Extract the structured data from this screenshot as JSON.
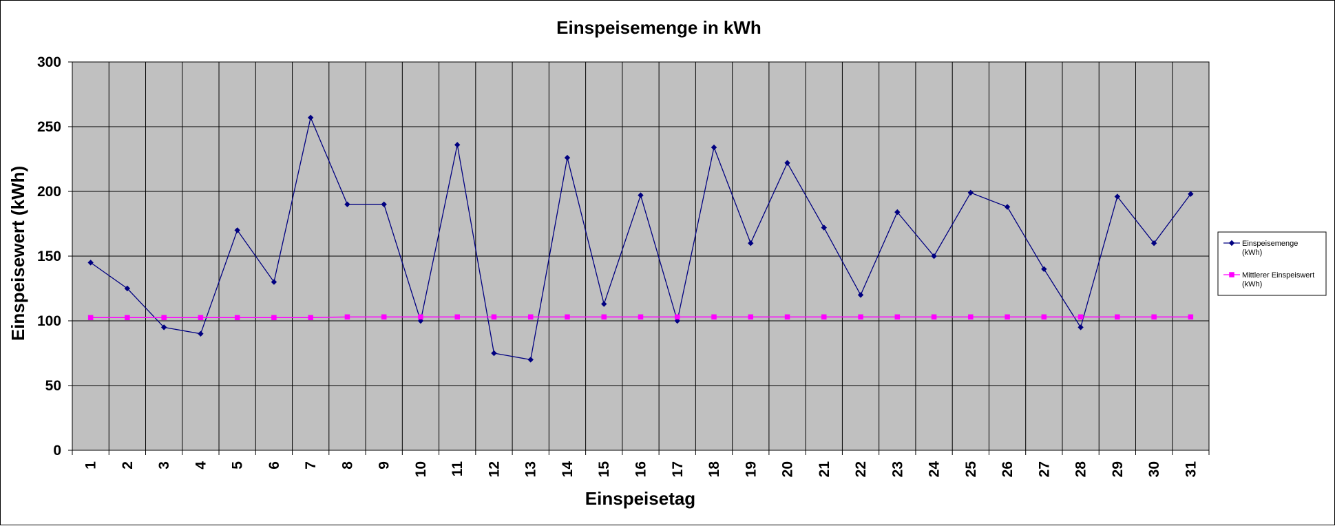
{
  "chart_data": {
    "type": "line",
    "title": "Einspeisemenge in kWh",
    "xlabel": "Einspeisetag",
    "ylabel": "Einspeisewert  (kWh)",
    "ylim": [
      0,
      300
    ],
    "yticks": [
      0,
      50,
      100,
      150,
      200,
      250,
      300
    ],
    "grid": true,
    "legend_position": "right",
    "plot_background": "#c0c0c0",
    "categories": [
      "1",
      "2",
      "3",
      "4",
      "5",
      "6",
      "7",
      "8",
      "9",
      "10",
      "11",
      "12",
      "13",
      "14",
      "15",
      "16",
      "17",
      "18",
      "19",
      "20",
      "21",
      "22",
      "23",
      "24",
      "25",
      "26",
      "27",
      "28",
      "29",
      "30",
      "31"
    ],
    "series": [
      {
        "name": "Einspeisemenge (kWh)",
        "legend_lines": [
          "Einspeisemenge",
          "(kWh)"
        ],
        "color": "#000080",
        "marker": "diamond",
        "values": [
          145,
          125,
          95,
          90,
          170,
          130,
          257,
          190,
          190,
          100,
          236,
          75,
          70,
          226,
          113,
          197,
          100,
          234,
          160,
          222,
          172,
          120,
          184,
          150,
          199,
          188,
          140,
          95,
          196,
          160,
          198
        ]
      },
      {
        "name": "Mittlerer Einspeiswert (kWh)",
        "legend_lines": [
          "Mittlerer Einspeiswert",
          "(kWh)"
        ],
        "color": "#ff00ff",
        "marker": "square",
        "values": [
          102.5,
          102.5,
          102.5,
          102.5,
          102.5,
          102.5,
          102.5,
          103,
          103,
          103,
          103,
          103,
          103,
          103,
          103,
          103,
          103,
          103,
          103,
          103,
          103,
          103,
          103,
          103,
          103,
          103,
          103,
          103,
          103,
          103,
          103
        ]
      }
    ]
  }
}
